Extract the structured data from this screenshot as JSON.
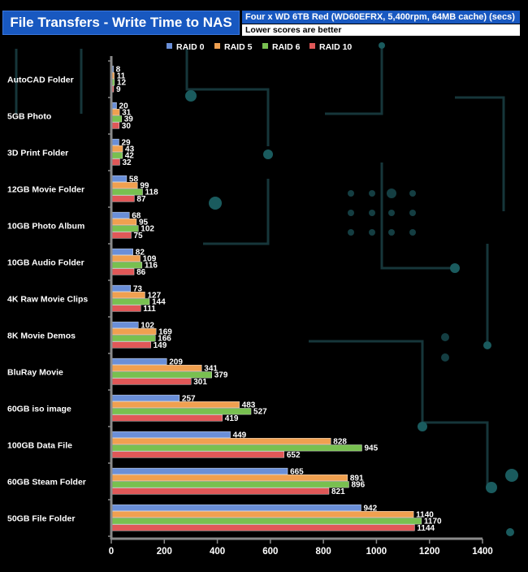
{
  "header": {
    "title": "File Transfers - Write Time to NAS",
    "subtitle": "Four x WD 6TB Red (WD60EFRX, 5,400rpm, 64MB cache) (secs)",
    "note": "Lower scores are better"
  },
  "chart_data": {
    "type": "bar",
    "orientation": "horizontal",
    "title": "File Transfers - Write Time to NAS",
    "xlabel": "",
    "ylabel": "",
    "xlim": [
      0,
      1400
    ],
    "xticks": [
      0,
      200,
      400,
      600,
      800,
      1000,
      1200,
      1400
    ],
    "grid": false,
    "legend": "top",
    "categories": [
      "AutoCAD Folder",
      "5GB Photo",
      "3D Print Folder",
      "12GB Movie Folder",
      "10GB Photo Album",
      "10GB Audio Folder",
      "4K Raw Movie Clips",
      "8K Movie Demos",
      "BluRay Movie",
      "60GB iso image",
      "100GB  Data File",
      "60GB Steam Folder",
      "50GB File Folder"
    ],
    "series": [
      {
        "name": "RAID 0",
        "color": "#6a8fd8",
        "values": [
          8,
          20,
          29,
          58,
          68,
          82,
          73,
          102,
          209,
          257,
          449,
          665,
          942
        ]
      },
      {
        "name": "RAID 5",
        "color": "#f0a050",
        "values": [
          11,
          31,
          43,
          99,
          95,
          109,
          127,
          169,
          341,
          483,
          828,
          891,
          1140
        ]
      },
      {
        "name": "RAID 6",
        "color": "#78c050",
        "values": [
          12,
          39,
          42,
          118,
          102,
          116,
          144,
          166,
          379,
          527,
          945,
          896,
          1170
        ]
      },
      {
        "name": "RAID 10",
        "color": "#e05858",
        "values": [
          9,
          30,
          32,
          87,
          75,
          86,
          111,
          149,
          301,
          419,
          652,
          821,
          1144
        ]
      }
    ]
  }
}
